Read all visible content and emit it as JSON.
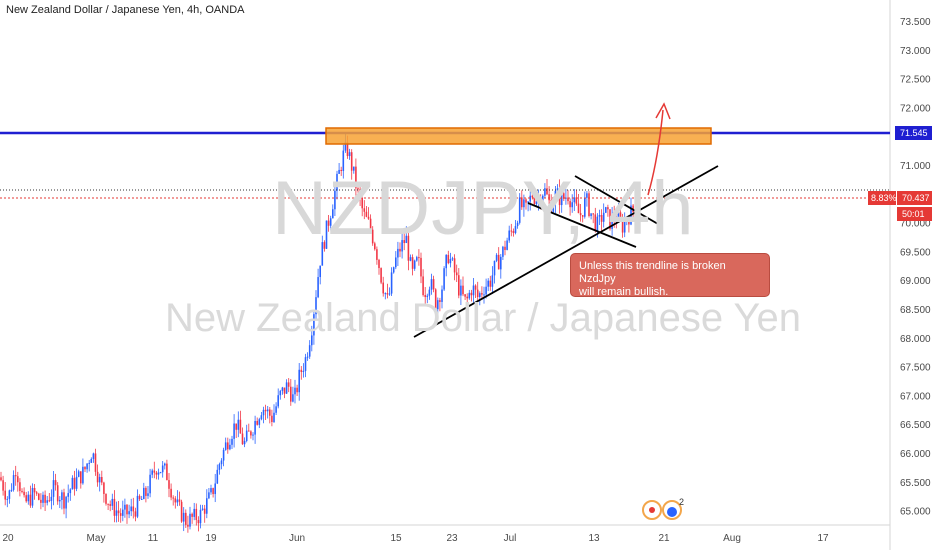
{
  "header": {
    "title": "New Zealand Dollar / Japanese Yen, 4h, OANDA"
  },
  "watermark": {
    "symbol": "NZDJPY, 4h",
    "name": "New Zealand Dollar / Japanese Yen"
  },
  "annotation": {
    "text": "Unless this trendline is broken NzdJpy\nwill remain  bullish."
  },
  "price_tags": {
    "resistance": "71.545",
    "last_price": "70.437",
    "percent": "8.83%",
    "countdown": "50:01"
  },
  "colors": {
    "up": "#2962ff",
    "down": "#f23645",
    "resistance_line": "#1f1fd1",
    "zone_fill": "#f7a234",
    "zone_border": "#e06a00",
    "arrow": "#e53935",
    "trendline": "#000000"
  },
  "icons": {
    "badge_count": "2",
    "items": [
      "record-icon",
      "bear-icon"
    ]
  },
  "chart_data": {
    "type": "candlestick",
    "title": "New Zealand Dollar / Japanese Yen, 4h, OANDA",
    "ylim": [
      64.8,
      73.8
    ],
    "y_ticks": [
      "73.500",
      "73.000",
      "72.500",
      "72.000",
      "71.500",
      "71.000",
      "70.500",
      "70.000",
      "69.500",
      "69.000",
      "68.500",
      "68.000",
      "67.500",
      "67.000",
      "66.500",
      "66.000",
      "65.500",
      "65.000"
    ],
    "x_ticks": [
      "20",
      "May",
      "11",
      "19",
      "Jun",
      "15",
      "23",
      "Jul",
      "13",
      "21",
      "Aug",
      "17"
    ],
    "path_points": [
      [
        0,
        65.4
      ],
      [
        8,
        65.0
      ],
      [
        16,
        65.6
      ],
      [
        24,
        64.9
      ],
      [
        34,
        65.1
      ],
      [
        44,
        64.9
      ],
      [
        54,
        65.2
      ],
      [
        64,
        65.0
      ],
      [
        74,
        65.3
      ],
      [
        84,
        65.5
      ],
      [
        92,
        65.9
      ],
      [
        100,
        65.3
      ],
      [
        110,
        64.9
      ],
      [
        122,
        64.7
      ],
      [
        134,
        64.8
      ],
      [
        146,
        65.1
      ],
      [
        156,
        65.6
      ],
      [
        166,
        65.5
      ],
      [
        176,
        64.9
      ],
      [
        186,
        64.6
      ],
      [
        200,
        64.7
      ],
      [
        212,
        65.1
      ],
      [
        220,
        65.7
      ],
      [
        228,
        66.1
      ],
      [
        236,
        66.4
      ],
      [
        244,
        66.0
      ],
      [
        252,
        66.3
      ],
      [
        262,
        66.7
      ],
      [
        272,
        66.5
      ],
      [
        280,
        66.9
      ],
      [
        288,
        67.1
      ],
      [
        294,
        66.8
      ],
      [
        300,
        67.3
      ],
      [
        306,
        67.6
      ],
      [
        312,
        68.2
      ],
      [
        316,
        68.8
      ],
      [
        320,
        69.4
      ],
      [
        326,
        69.9
      ],
      [
        332,
        70.4
      ],
      [
        338,
        70.9
      ],
      [
        343,
        71.3
      ],
      [
        347,
        71.45
      ],
      [
        352,
        71.1
      ],
      [
        358,
        70.6
      ],
      [
        364,
        70.2
      ],
      [
        370,
        70.0
      ],
      [
        376,
        69.6
      ],
      [
        382,
        69.0
      ],
      [
        388,
        68.6
      ],
      [
        394,
        69.3
      ],
      [
        400,
        69.6
      ],
      [
        406,
        69.8
      ],
      [
        412,
        69.1
      ],
      [
        418,
        69.4
      ],
      [
        424,
        68.8
      ],
      [
        430,
        69.0
      ],
      [
        436,
        68.6
      ],
      [
        442,
        68.9
      ],
      [
        448,
        69.5
      ],
      [
        454,
        69.2
      ],
      [
        460,
        68.8
      ],
      [
        466,
        68.6
      ],
      [
        472,
        68.9
      ],
      [
        478,
        68.7
      ],
      [
        484,
        68.9
      ],
      [
        490,
        69.0
      ],
      [
        496,
        69.3
      ],
      [
        502,
        69.5
      ],
      [
        508,
        69.8
      ],
      [
        514,
        70.0
      ],
      [
        520,
        70.4
      ],
      [
        526,
        70.3
      ],
      [
        532,
        70.6
      ],
      [
        538,
        70.5
      ],
      [
        544,
        70.7
      ],
      [
        550,
        70.4
      ],
      [
        556,
        70.6
      ],
      [
        562,
        70.5
      ],
      [
        568,
        70.6
      ],
      [
        574,
        70.4
      ],
      [
        580,
        70.2
      ],
      [
        586,
        70.5
      ],
      [
        592,
        70.2
      ],
      [
        598,
        70.0
      ],
      [
        604,
        70.3
      ],
      [
        610,
        70.1
      ],
      [
        616,
        70.2
      ],
      [
        622,
        70.0
      ],
      [
        628,
        70.2
      ],
      [
        634,
        70.3
      ],
      [
        640,
        70.4
      ]
    ],
    "resistance": 71.545,
    "last_price": 70.437
  }
}
